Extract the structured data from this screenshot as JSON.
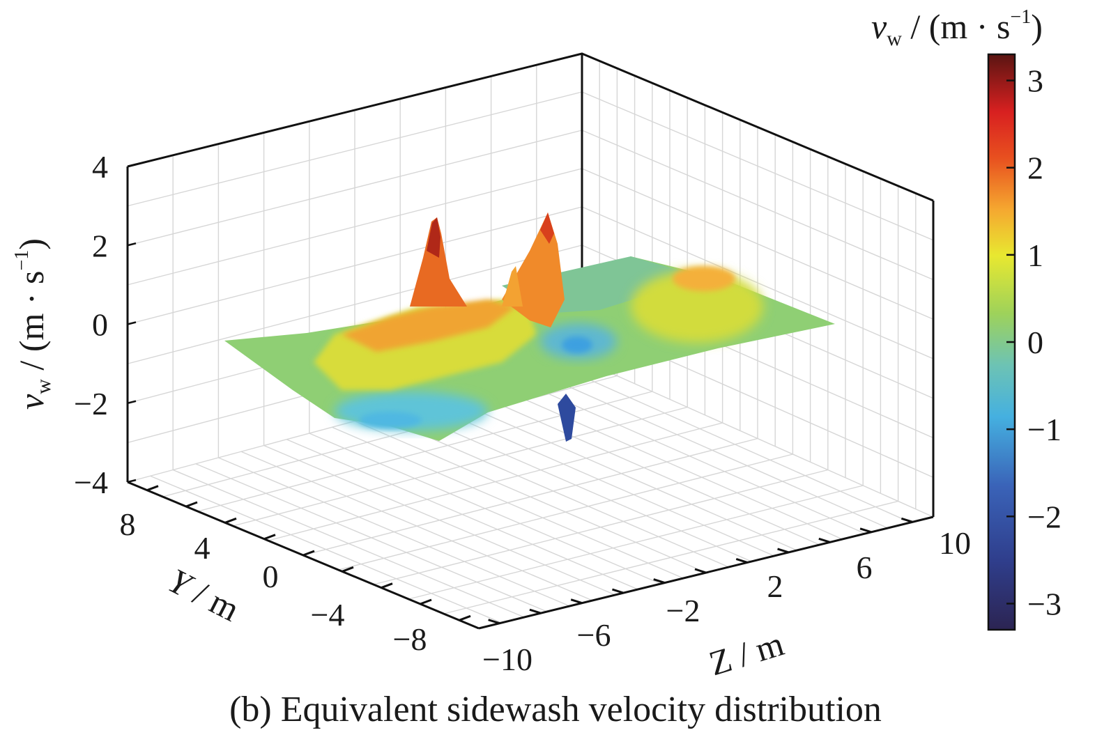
{
  "chart_data": {
    "type": "surface",
    "caption": "(b) Equivalent sidewash velocity distribution",
    "xlabel": {
      "symbol": "Y",
      "unit": " / m"
    },
    "ylabel": {
      "symbol": "Z",
      "unit": " / m"
    },
    "zlabel": {
      "symbol": "v",
      "sub": "w",
      "unit": " / (m · s",
      "sup": "−1",
      "close": ")"
    },
    "colorbar_label": {
      "symbol": "v",
      "sub": "w",
      "unit": " / (m · s",
      "sup": "−1",
      "close": ")"
    },
    "x_ticks": [
      "8",
      "4",
      "0",
      "−4",
      "−8"
    ],
    "y_ticks": [
      "−10",
      "−6",
      "−2",
      "2",
      "6",
      "10"
    ],
    "z_ticks": [
      "4",
      "2",
      "0",
      "−2",
      "−4"
    ],
    "colorbar_ticks": [
      "3",
      "2",
      "1",
      "0",
      "−1",
      "−2",
      "−3"
    ],
    "zlim": [
      -4,
      4
    ],
    "clim": [
      -3.3,
      3.3
    ],
    "colormap": "jet-like",
    "grid": true,
    "features": [
      {
        "Y": 3,
        "Z": -4.5,
        "v": 2.8,
        "desc": "sharp positive peak"
      },
      {
        "Y": -1,
        "Z": -2,
        "v": 2.5,
        "desc": "positive ridge peak"
      },
      {
        "Y": -1,
        "Z": -3,
        "v": 1.9,
        "desc": "secondary positive peak"
      },
      {
        "Y": -3,
        "Z": 0,
        "v": -3.2,
        "desc": "sharp negative dip"
      },
      {
        "Y": 4,
        "Z": 5,
        "v": 1.3,
        "desc": "smooth positive hump"
      },
      {
        "Y": 4,
        "Z": -8,
        "v": -1.2,
        "desc": "broad negative trough"
      }
    ]
  }
}
